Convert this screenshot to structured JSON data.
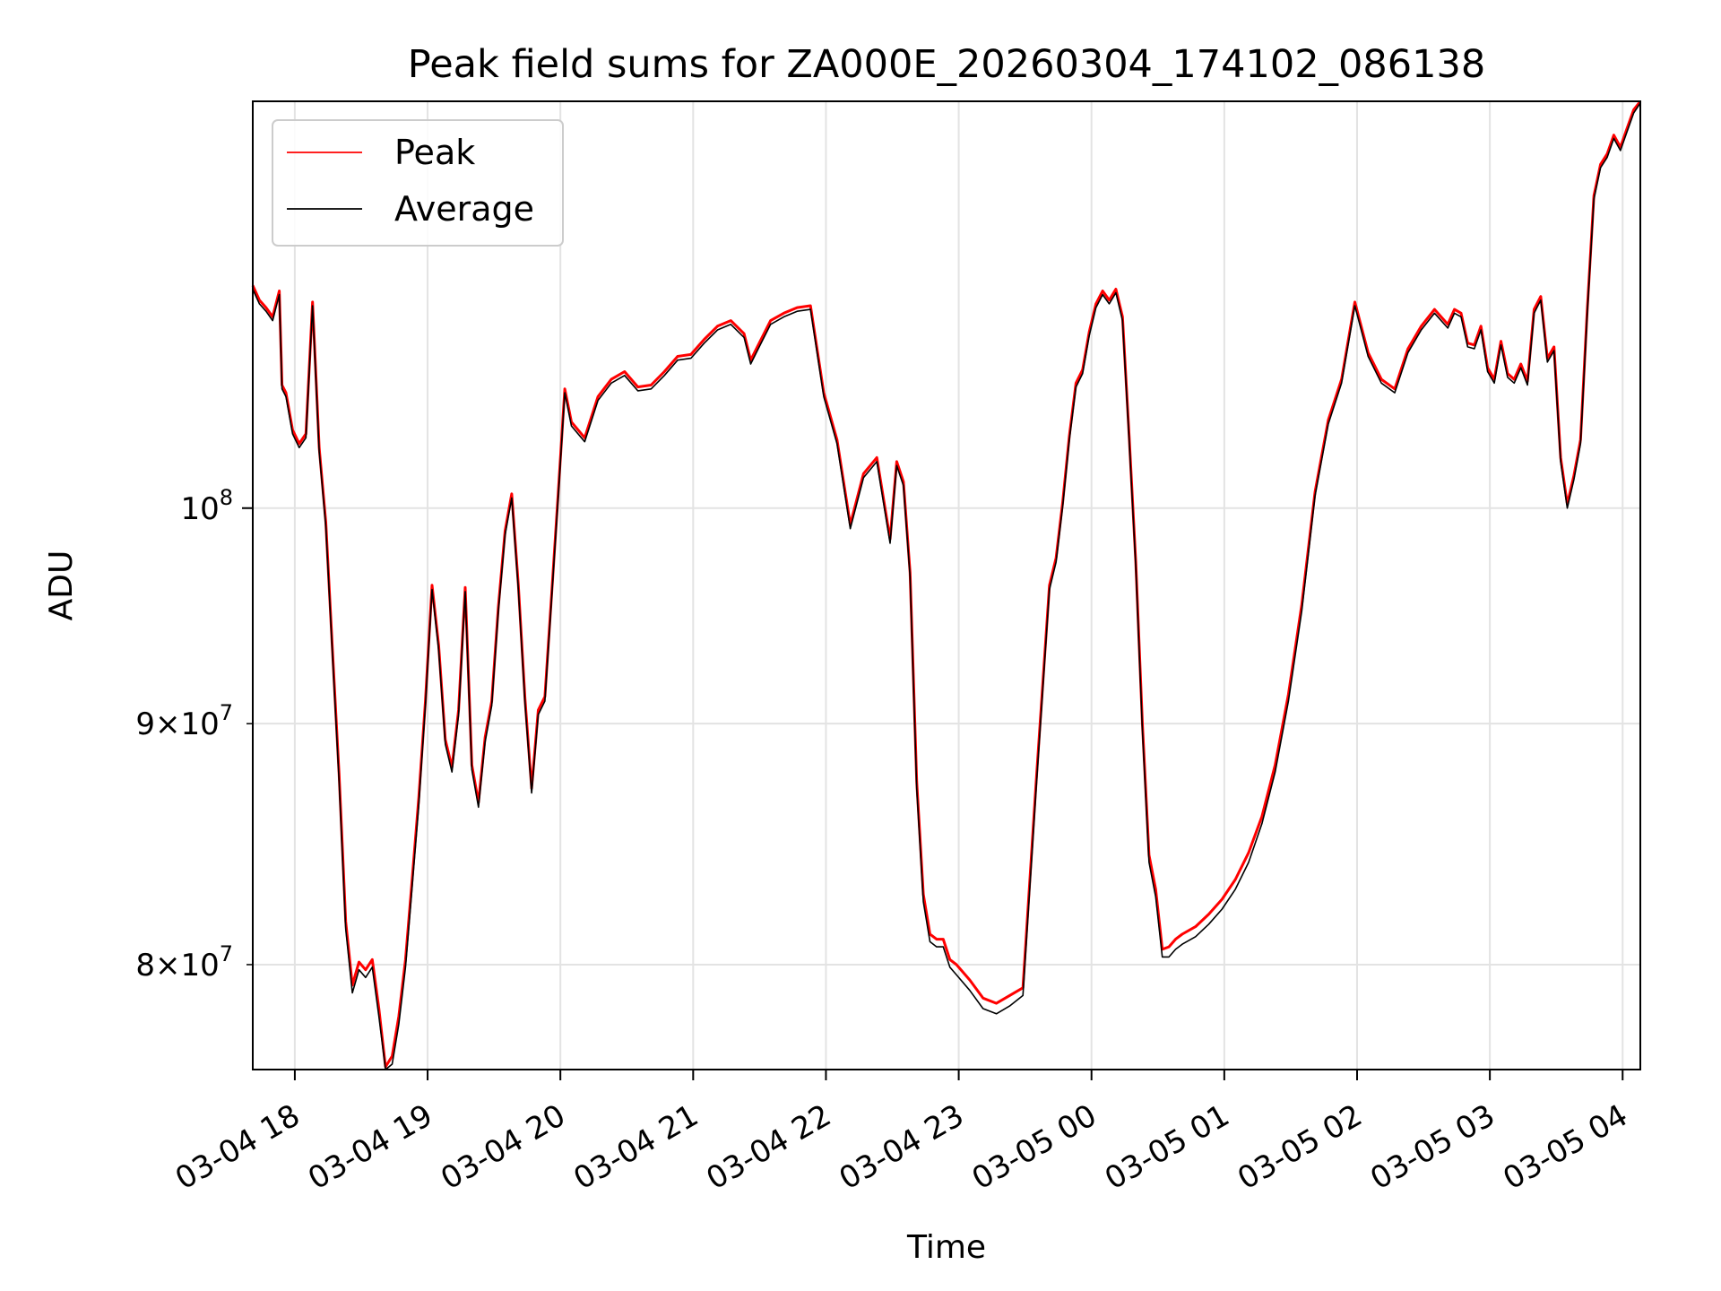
{
  "chart_data": {
    "type": "line",
    "title": "Peak field sums for ZA000E_20260304_174102_086138",
    "xlabel": "Time",
    "ylabel": "ADU",
    "x_unit": "hours since 03-04 17:41",
    "xlim": [
      0.0,
      10.45
    ],
    "ylim": [
      76000000,
      122000000
    ],
    "y_scale": "log",
    "x_tick_values": [
      0.3167,
      1.3167,
      2.3167,
      3.3167,
      4.3167,
      5.3167,
      6.3167,
      7.3167,
      8.3167,
      9.3167,
      10.3167
    ],
    "x_tick_labels": [
      "03-04 18",
      "03-04 19",
      "03-04 20",
      "03-04 21",
      "03-04 22",
      "03-04 23",
      "03-05 00",
      "03-05 01",
      "03-05 02",
      "03-05 03",
      "03-05 04"
    ],
    "y_major_ticks": [
      {
        "value": 100000000,
        "base": "10",
        "exp": "8"
      }
    ],
    "y_minor_ticks": [
      {
        "value": 90000000,
        "mant": "9",
        "base": "10",
        "exp": "7"
      },
      {
        "value": 80000000,
        "mant": "8",
        "base": "10",
        "exp": "7"
      }
    ],
    "grid": true,
    "legend_position": "upper-left",
    "series": [
      {
        "name": "Peak",
        "color": "#ff0000",
        "x": [
          0.0,
          0.05,
          0.1,
          0.15,
          0.2,
          0.22,
          0.25,
          0.3,
          0.35,
          0.4,
          0.45,
          0.5,
          0.55,
          0.6,
          0.65,
          0.7,
          0.75,
          0.8,
          0.85,
          0.9,
          0.95,
          1.0,
          1.05,
          1.1,
          1.15,
          1.2,
          1.25,
          1.3,
          1.35,
          1.4,
          1.45,
          1.5,
          1.55,
          1.6,
          1.65,
          1.7,
          1.75,
          1.8,
          1.85,
          1.9,
          1.95,
          2.0,
          2.05,
          2.1,
          2.15,
          2.2,
          2.25,
          2.3,
          2.35,
          2.4,
          2.5,
          2.6,
          2.7,
          2.8,
          2.9,
          3.0,
          3.1,
          3.2,
          3.3,
          3.4,
          3.5,
          3.6,
          3.7,
          3.75,
          3.8,
          3.9,
          4.0,
          4.1,
          4.2,
          4.3,
          4.4,
          4.5,
          4.6,
          4.7,
          4.8,
          4.85,
          4.9,
          4.95,
          5.0,
          5.05,
          5.1,
          5.15,
          5.2,
          5.25,
          5.3,
          5.4,
          5.5,
          5.6,
          5.7,
          5.8,
          5.9,
          6.0,
          6.05,
          6.1,
          6.15,
          6.2,
          6.25,
          6.3,
          6.35,
          6.4,
          6.45,
          6.5,
          6.55,
          6.6,
          6.65,
          6.7,
          6.75,
          6.8,
          6.85,
          6.9,
          6.95,
          7.0,
          7.1,
          7.2,
          7.3,
          7.4,
          7.5,
          7.6,
          7.7,
          7.8,
          7.9,
          8.0,
          8.1,
          8.2,
          8.3,
          8.4,
          8.5,
          8.6,
          8.7,
          8.8,
          8.9,
          9.0,
          9.05,
          9.1,
          9.15,
          9.2,
          9.25,
          9.3,
          9.35,
          9.4,
          9.45,
          9.5,
          9.55,
          9.6,
          9.65,
          9.7,
          9.75,
          9.8,
          9.85,
          9.9,
          9.95,
          10.0,
          10.05,
          10.1,
          10.15,
          10.2,
          10.25,
          10.3,
          10.35,
          10.4,
          10.45
        ],
        "y": [
          111500000,
          110700000,
          110300000,
          109800000,
          111200000,
          106200000,
          105800000,
          103900000,
          103200000,
          103700000,
          110600000,
          103000000,
          99300000,
          93300000,
          87800000,
          81700000,
          79200000,
          80100000,
          79800000,
          80200000,
          78300000,
          76100000,
          76500000,
          78000000,
          80200000,
          83400000,
          86800000,
          91000000,
          96300000,
          93500000,
          89300000,
          88100000,
          90600000,
          96200000,
          88200000,
          86600000,
          89400000,
          91000000,
          95300000,
          98900000,
          100700000,
          96300000,
          91100000,
          87200000,
          90600000,
          91200000,
          95800000,
          100700000,
          106000000,
          104300000,
          103500000,
          105600000,
          106500000,
          106900000,
          106100000,
          106200000,
          106900000,
          107700000,
          107800000,
          108600000,
          109300000,
          109600000,
          108900000,
          107500000,
          108200000,
          109600000,
          110000000,
          110300000,
          110400000,
          105800000,
          103400000,
          99200000,
          101700000,
          102500000,
          98500000,
          102300000,
          101300000,
          96900000,
          87500000,
          82800000,
          81200000,
          81000000,
          81000000,
          80200000,
          80000000,
          79400000,
          78700000,
          78500000,
          78800000,
          79100000,
          87500000,
          96300000,
          97600000,
          100300000,
          103600000,
          106300000,
          107000000,
          109000000,
          110500000,
          111200000,
          110700000,
          111300000,
          109800000,
          103600000,
          97400000,
          90000000,
          84400000,
          83000000,
          80600000,
          80700000,
          81000000,
          81200000,
          81500000,
          82000000,
          82600000,
          83400000,
          84500000,
          86000000,
          88200000,
          91300000,
          95400000,
          100800000,
          104400000,
          106500000,
          110600000,
          107900000,
          106500000,
          106000000,
          108100000,
          109300000,
          110200000,
          109400000,
          110200000,
          110000000,
          108400000,
          108300000,
          109300000,
          107100000,
          106500000,
          108500000,
          106800000,
          106500000,
          107300000,
          106400000,
          110200000,
          110900000,
          107600000,
          108200000,
          102500000,
          100200000,
          101600000,
          103400000,
          110100000,
          116500000,
          118300000,
          118900000,
          120000000,
          119300000,
          120400000,
          121500000,
          122000000
        ]
      },
      {
        "name": "Average",
        "color": "#000000",
        "x": [
          0.0,
          0.05,
          0.1,
          0.15,
          0.2,
          0.22,
          0.25,
          0.3,
          0.35,
          0.4,
          0.45,
          0.5,
          0.55,
          0.6,
          0.65,
          0.7,
          0.75,
          0.8,
          0.85,
          0.9,
          0.95,
          1.0,
          1.05,
          1.1,
          1.15,
          1.2,
          1.25,
          1.3,
          1.35,
          1.4,
          1.45,
          1.5,
          1.55,
          1.6,
          1.65,
          1.7,
          1.75,
          1.8,
          1.85,
          1.9,
          1.95,
          2.0,
          2.05,
          2.1,
          2.15,
          2.2,
          2.25,
          2.3,
          2.35,
          2.4,
          2.5,
          2.6,
          2.7,
          2.8,
          2.9,
          3.0,
          3.1,
          3.2,
          3.3,
          3.4,
          3.5,
          3.6,
          3.7,
          3.75,
          3.8,
          3.9,
          4.0,
          4.1,
          4.2,
          4.3,
          4.4,
          4.5,
          4.6,
          4.7,
          4.8,
          4.85,
          4.9,
          4.95,
          5.0,
          5.05,
          5.1,
          5.15,
          5.2,
          5.25,
          5.3,
          5.4,
          5.5,
          5.6,
          5.7,
          5.8,
          5.9,
          6.0,
          6.05,
          6.1,
          6.15,
          6.2,
          6.25,
          6.3,
          6.35,
          6.4,
          6.45,
          6.5,
          6.55,
          6.6,
          6.65,
          6.7,
          6.75,
          6.8,
          6.85,
          6.9,
          6.95,
          7.0,
          7.1,
          7.2,
          7.3,
          7.4,
          7.5,
          7.6,
          7.7,
          7.8,
          7.9,
          8.0,
          8.1,
          8.2,
          8.3,
          8.4,
          8.5,
          8.6,
          8.7,
          8.8,
          8.9,
          9.0,
          9.05,
          9.1,
          9.15,
          9.2,
          9.25,
          9.3,
          9.35,
          9.4,
          9.45,
          9.5,
          9.55,
          9.6,
          9.65,
          9.7,
          9.75,
          9.8,
          9.85,
          9.9,
          9.95,
          10.0,
          10.05,
          10.1,
          10.15,
          10.2,
          10.25,
          10.3,
          10.35,
          10.4,
          10.45
        ],
        "y": [
          111300000,
          110500000,
          110100000,
          109600000,
          111000000,
          106000000,
          105600000,
          103700000,
          103000000,
          103500000,
          110400000,
          102800000,
          99100000,
          93100000,
          87500000,
          81400000,
          78900000,
          79800000,
          79500000,
          79900000,
          78000000,
          75900000,
          76200000,
          77700000,
          79900000,
          83100000,
          86500000,
          90800000,
          96100000,
          93300000,
          89100000,
          87900000,
          90400000,
          96000000,
          88000000,
          86400000,
          89200000,
          90800000,
          95100000,
          98700000,
          100500000,
          96100000,
          90900000,
          87000000,
          90400000,
          91000000,
          95600000,
          100500000,
          105800000,
          104100000,
          103300000,
          105400000,
          106300000,
          106700000,
          105900000,
          106000000,
          106700000,
          107500000,
          107600000,
          108400000,
          109100000,
          109400000,
          108700000,
          107300000,
          108000000,
          109400000,
          109800000,
          110100000,
          110200000,
          105600000,
          103200000,
          99000000,
          101500000,
          102300000,
          98300000,
          102100000,
          101100000,
          96700000,
          87200000,
          82500000,
          80900000,
          80700000,
          80700000,
          79900000,
          79600000,
          79000000,
          78300000,
          78100000,
          78400000,
          78800000,
          87200000,
          96100000,
          97400000,
          100100000,
          103400000,
          106100000,
          106800000,
          108800000,
          110300000,
          111000000,
          110500000,
          111100000,
          109600000,
          103400000,
          97200000,
          89700000,
          84100000,
          82700000,
          80300000,
          80300000,
          80600000,
          80800000,
          81100000,
          81600000,
          82200000,
          83000000,
          84100000,
          85700000,
          87900000,
          91000000,
          95100000,
          100600000,
          104200000,
          106300000,
          110400000,
          107700000,
          106300000,
          105800000,
          107900000,
          109100000,
          110000000,
          109200000,
          110000000,
          109800000,
          108200000,
          108100000,
          109100000,
          106900000,
          106300000,
          108300000,
          106600000,
          106300000,
          107100000,
          106200000,
          110000000,
          110700000,
          107400000,
          108000000,
          102300000,
          100000000,
          101400000,
          103200000,
          109900000,
          116300000,
          118100000,
          118700000,
          119800000,
          119100000,
          120200000,
          121300000,
          121900000
        ]
      }
    ]
  }
}
